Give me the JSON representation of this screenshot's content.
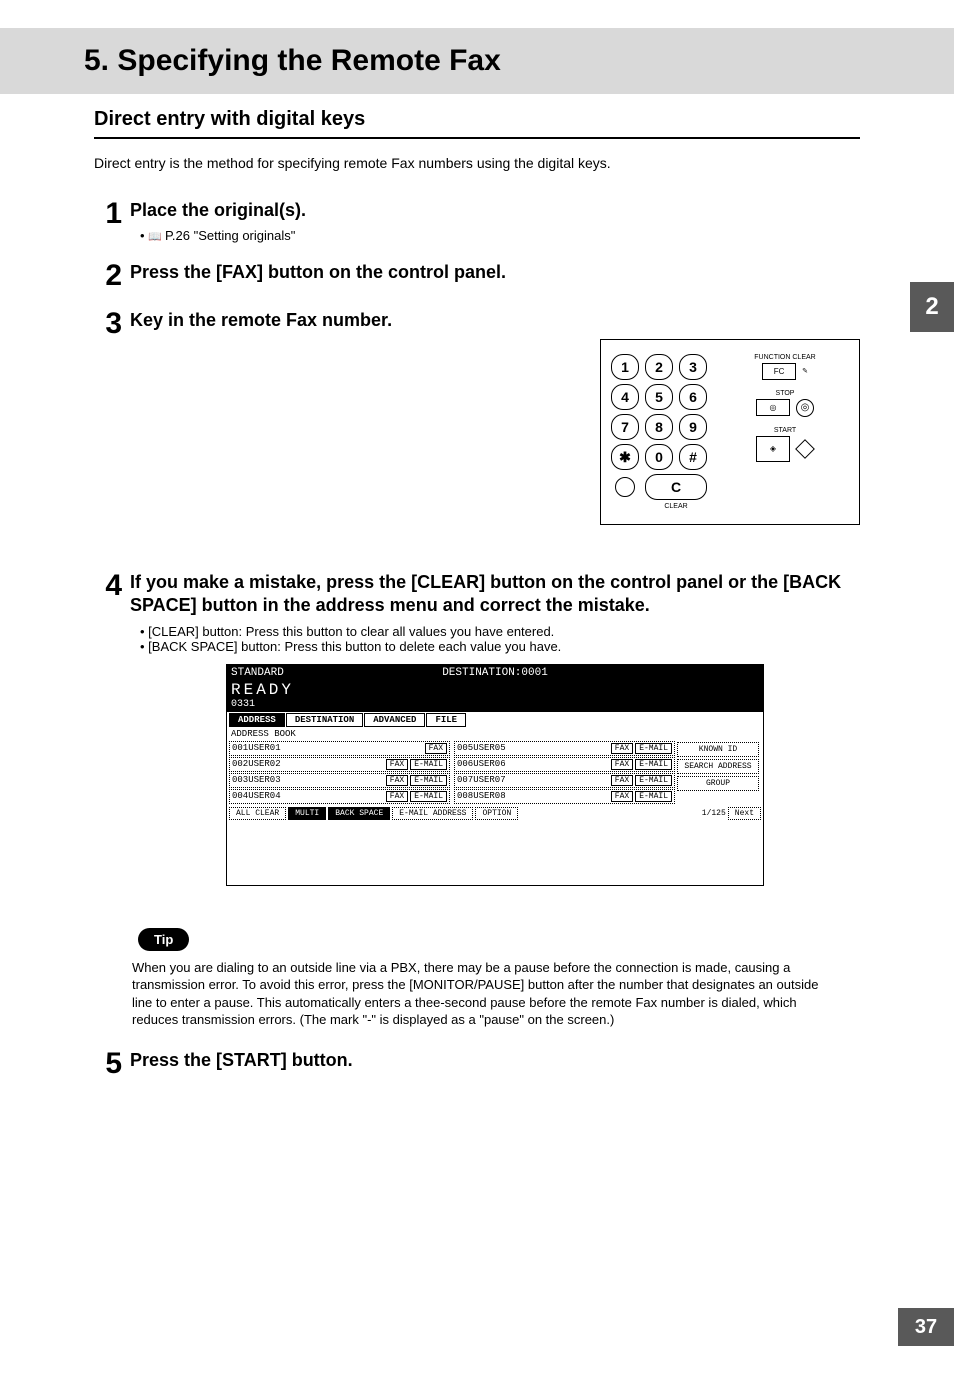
{
  "page": {
    "chapter_tab": "2",
    "page_number": "37",
    "title": "5. Specifying the Remote Fax",
    "subtitle": "Direct entry with digital keys",
    "intro": "Direct entry is the method for specifying remote Fax numbers using the digital keys."
  },
  "steps": [
    {
      "num": "1",
      "title": "Place the original(s).",
      "bullets": [
        "P.26 \"Setting originals\""
      ],
      "show_book_icon": true
    },
    {
      "num": "2",
      "title": "Press the [FAX] button on the control panel."
    },
    {
      "num": "3",
      "title": "Key in the remote Fax number."
    },
    {
      "num": "4",
      "title": "If you make a mistake, press the [CLEAR] button on the control panel or the [BACK SPACE] button in the address menu and correct the mistake.",
      "bullets": [
        "[CLEAR] button: Press this button to clear all values you have entered.",
        "[BACK SPACE] button: Press this button to delete each value you have."
      ]
    },
    {
      "num": "5",
      "title": "Press the [START] button."
    }
  ],
  "keypad": {
    "keys": [
      "1",
      "2",
      "3",
      "4",
      "5",
      "6",
      "7",
      "8",
      "9",
      "✱",
      "0",
      "#"
    ],
    "clear_key": "C",
    "clear_label": "CLEAR",
    "labels": {
      "function_clear": "FUNCTION CLEAR",
      "fc": "FC",
      "stop": "STOP",
      "start": "START"
    }
  },
  "lcd": {
    "header_left": "STANDARD",
    "header_right": "DESTINATION:0001",
    "ready": "READY",
    "number": "0331",
    "tabs": [
      "ADDRESS",
      "DESTINATION",
      "ADVANCED",
      "FILE"
    ],
    "active_tab": 0,
    "sublabel": "ADDRESS BOOK",
    "col1": [
      {
        "id": "001",
        "name": "USER01",
        "fax": true,
        "email": false
      },
      {
        "id": "002",
        "name": "USER02",
        "fax": true,
        "email": true
      },
      {
        "id": "003",
        "name": "USER03",
        "fax": true,
        "email": true
      },
      {
        "id": "004",
        "name": "USER04",
        "fax": true,
        "email": true
      }
    ],
    "col2": [
      {
        "id": "005",
        "name": "USER05",
        "fax": true,
        "email": true
      },
      {
        "id": "006",
        "name": "USER06",
        "fax": true,
        "email": true
      },
      {
        "id": "007",
        "name": "USER07",
        "fax": true,
        "email": true
      },
      {
        "id": "008",
        "name": "USER08",
        "fax": true,
        "email": true
      }
    ],
    "side_buttons": [
      "KNOWN ID",
      "SEARCH ADDRESS",
      "GROUP"
    ],
    "bottom": {
      "all_clear": "ALL CLEAR",
      "multi": "MULTI",
      "back_space": "BACK SPACE",
      "email_addr": "E-MAIL ADDRESS",
      "option": "OPTION",
      "page": "1/125",
      "next": "Next"
    }
  },
  "tip": {
    "label": "Tip",
    "text": "When you are dialing to an outside line via a PBX, there may be a pause before the connection is made, causing a transmission error. To avoid this error, press the [MONITOR/PAUSE] button after the number that designates an outside line to enter a pause. This automatically enters a thee-second pause before the remote Fax number is dialed, which reduces transmission errors. (The mark \"-\" is displayed as a \"pause\" on the screen.)"
  }
}
